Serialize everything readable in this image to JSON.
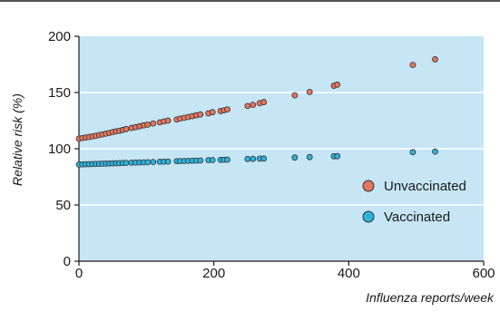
{
  "chart_data": {
    "type": "scatter",
    "title": "",
    "xlabel": "Influenza reports/week",
    "ylabel": "Relative risk (%)",
    "xlim": [
      0,
      600
    ],
    "ylim": [
      0,
      200
    ],
    "x_ticks": [
      0,
      200,
      400,
      600
    ],
    "y_ticks": [
      0,
      50,
      100,
      150,
      200
    ],
    "x_tick_labels": [
      "0",
      "200",
      "400",
      "600"
    ],
    "y_tick_labels": [
      "0",
      "50",
      "100",
      "150",
      "200"
    ],
    "grid": "horizontal",
    "legend_position": "bottom-right",
    "background_color": "#c6e6f6",
    "series": [
      {
        "name": "Unvaccinated",
        "color": "#e2775f",
        "x": [
          0,
          5,
          10,
          15,
          20,
          25,
          30,
          35,
          40,
          45,
          50,
          55,
          60,
          65,
          70,
          78,
          84,
          90,
          96,
          102,
          110,
          120,
          126,
          132,
          145,
          150,
          156,
          162,
          168,
          174,
          180,
          192,
          198,
          210,
          215,
          220,
          250,
          258,
          268,
          274,
          320,
          342,
          378,
          383,
          495,
          528
        ],
        "values": [
          109.0,
          109.5,
          110.0,
          110.5,
          111.0,
          111.5,
          112.2,
          112.8,
          113.5,
          114.0,
          114.8,
          115.5,
          116.0,
          116.8,
          117.5,
          118.5,
          119.2,
          120.0,
          120.8,
          121.5,
          122.5,
          123.5,
          124.3,
          125.0,
          126.0,
          126.8,
          127.5,
          128.2,
          129.0,
          129.8,
          130.5,
          131.5,
          132.5,
          133.5,
          134.2,
          135.0,
          138.0,
          139.0,
          140.5,
          141.5,
          147.5,
          150.5,
          156.0,
          157.0,
          174.5,
          179.5
        ]
      },
      {
        "name": "Vaccinated",
        "color": "#2eb2dc",
        "x": [
          0,
          5,
          10,
          15,
          20,
          25,
          30,
          35,
          40,
          45,
          50,
          55,
          60,
          65,
          70,
          78,
          84,
          90,
          96,
          102,
          110,
          120,
          126,
          132,
          145,
          150,
          156,
          162,
          168,
          174,
          180,
          192,
          198,
          210,
          215,
          220,
          250,
          258,
          268,
          274,
          320,
          342,
          378,
          383,
          495,
          528
        ],
        "values": [
          86.0,
          86.1,
          86.2,
          86.3,
          86.4,
          86.5,
          86.6,
          86.7,
          86.8,
          86.9,
          87.0,
          87.1,
          87.2,
          87.3,
          87.4,
          87.6,
          87.7,
          87.8,
          87.9,
          88.0,
          88.2,
          88.4,
          88.5,
          88.6,
          88.9,
          89.0,
          89.1,
          89.2,
          89.3,
          89.4,
          89.5,
          89.8,
          89.9,
          90.1,
          90.2,
          90.3,
          90.9,
          91.0,
          91.2,
          91.3,
          92.2,
          92.6,
          93.3,
          93.4,
          97.0,
          97.5
        ]
      }
    ]
  }
}
